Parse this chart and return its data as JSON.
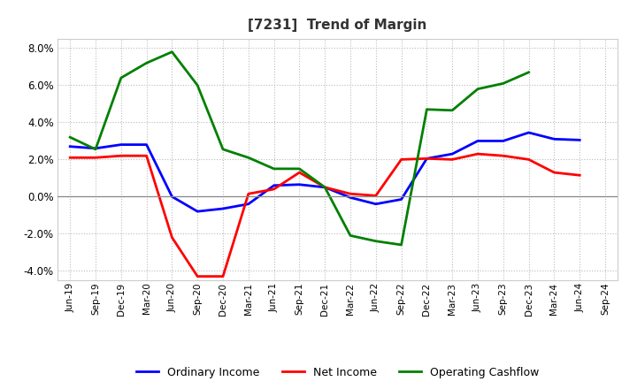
{
  "title": "[7231]  Trend of Margin",
  "x_labels": [
    "Jun-19",
    "Sep-19",
    "Dec-19",
    "Mar-20",
    "Jun-20",
    "Sep-20",
    "Dec-20",
    "Mar-21",
    "Jun-21",
    "Sep-21",
    "Dec-21",
    "Mar-22",
    "Jun-22",
    "Sep-22",
    "Dec-22",
    "Mar-23",
    "Jun-23",
    "Sep-23",
    "Dec-23",
    "Mar-24",
    "Jun-24",
    "Sep-24"
  ],
  "ordinary_income": [
    2.7,
    2.6,
    2.8,
    2.8,
    0.0,
    -0.8,
    -0.65,
    -0.4,
    0.6,
    0.65,
    0.5,
    -0.05,
    -0.4,
    -0.15,
    2.05,
    2.3,
    3.0,
    3.0,
    3.45,
    3.1,
    3.05,
    null
  ],
  "net_income": [
    2.1,
    2.1,
    2.2,
    2.2,
    -2.2,
    -4.3,
    -4.3,
    0.15,
    0.4,
    1.3,
    0.5,
    0.15,
    0.05,
    2.0,
    2.05,
    2.0,
    2.3,
    2.2,
    2.0,
    1.3,
    1.15,
    null
  ],
  "operating_cashflow": [
    3.2,
    2.55,
    6.4,
    7.2,
    7.8,
    6.0,
    2.55,
    2.1,
    1.5,
    1.5,
    0.5,
    -2.1,
    -2.4,
    -2.6,
    4.7,
    4.65,
    5.8,
    6.1,
    6.7,
    null,
    null,
    null
  ],
  "ylim": [
    -4.5,
    8.5
  ],
  "yticks": [
    -4.0,
    -2.0,
    0.0,
    2.0,
    4.0,
    6.0,
    8.0
  ],
  "line_colors": {
    "ordinary_income": "#0000ff",
    "net_income": "#ff0000",
    "operating_cashflow": "#008000"
  },
  "legend_labels": [
    "Ordinary Income",
    "Net Income",
    "Operating Cashflow"
  ],
  "background_color": "#ffffff",
  "grid_color": "#bbbbbb",
  "title_color": "#333333"
}
